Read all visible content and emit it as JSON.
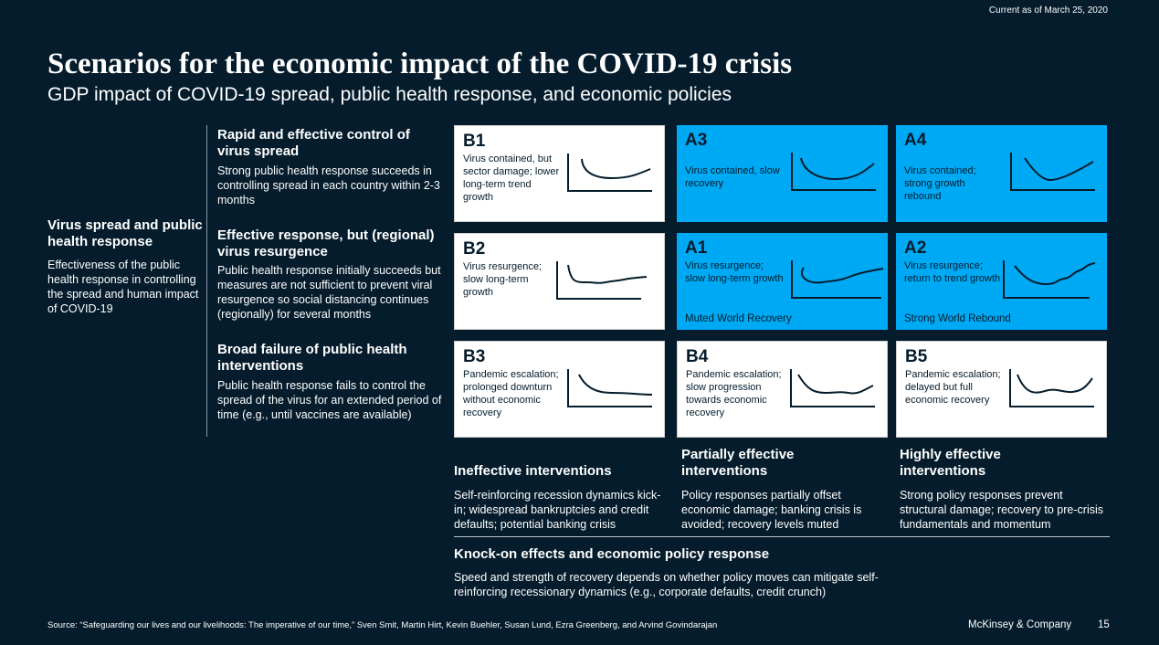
{
  "as_of": "Current as of March 25, 2020",
  "title": "Scenarios for the economic impact of the COVID-19 crisis",
  "subtitle": "GDP impact of COVID-19 spread, public health response, and economic policies",
  "left": {
    "heading": "Virus spread and public health response",
    "text": "Effectiveness of the public health response in controlling the spread and human impact of COVID-19"
  },
  "rows": [
    {
      "heading": "Rapid and effective control of virus spread",
      "text": "Strong public health response succeeds in controlling spread in each country within 2-3 months"
    },
    {
      "heading": "Effective response, but (regional) virus resurgence",
      "text": "Public health response initially succeeds but measures are not sufficient to prevent viral resurgence so social distancing continues (regionally) for several months"
    },
    {
      "heading": "Broad failure of public health interventions",
      "text": "Public health response fails to control the spread of the virus for an extended period of time (e.g., until vaccines are available)"
    }
  ],
  "cards": {
    "B1": {
      "id": "B1",
      "desc": "Virus contained, but sector damage; lower long-term trend growth"
    },
    "A3": {
      "id": "A3",
      "desc": "Virus contained, slow recovery"
    },
    "A4": {
      "id": "A4",
      "desc": "Virus contained; strong growth rebound"
    },
    "B2": {
      "id": "B2",
      "desc": "Virus resurgence; slow long-term growth"
    },
    "A1": {
      "id": "A1",
      "desc": "Virus resurgence; slow long-term growth",
      "footer": "Muted World Recovery"
    },
    "A2": {
      "id": "A2",
      "desc": "Virus resurgence; return to trend growth",
      "footer": "Strong World Rebound"
    },
    "B3": {
      "id": "B3",
      "desc": "Pandemic escalation; prolonged downturn without economic recovery"
    },
    "B4": {
      "id": "B4",
      "desc": "Pandemic escalation; slow progression towards economic recovery"
    },
    "B5": {
      "id": "B5",
      "desc": "Pandemic escalation; delayed but full economic recovery"
    }
  },
  "columns": [
    {
      "heading": "Ineffective interventions",
      "text": "Self-reinforcing recession dynamics kick-in; widespread bankruptcies and credit defaults; potential banking crisis"
    },
    {
      "heading": "Partially effective interventions",
      "text": "Policy responses partially offset economic damage; banking crisis is avoided; recovery levels muted"
    },
    {
      "heading": "Highly effective interventions",
      "text": "Strong policy responses prevent structural damage; recovery to pre-crisis fundamentals and momentum"
    }
  ],
  "knockon": {
    "heading": "Knock-on effects and economic policy response",
    "text": "Speed and strength of recovery depends on whether policy moves can mitigate self-reinforcing recessionary dynamics (e.g., corporate defaults, credit crunch)"
  },
  "source": "Source: “Safeguarding our lives and our livelihoods: The imperative of our time,” Sven Smit, Martin Hirt, Kevin Buehler, Susan Lund, Ezra Greenberg, and Arvind Govindarajan",
  "brand": "McKinsey & Company",
  "page": "15",
  "colors": {
    "background": "#051c2c",
    "accent": "#00a9f4"
  }
}
